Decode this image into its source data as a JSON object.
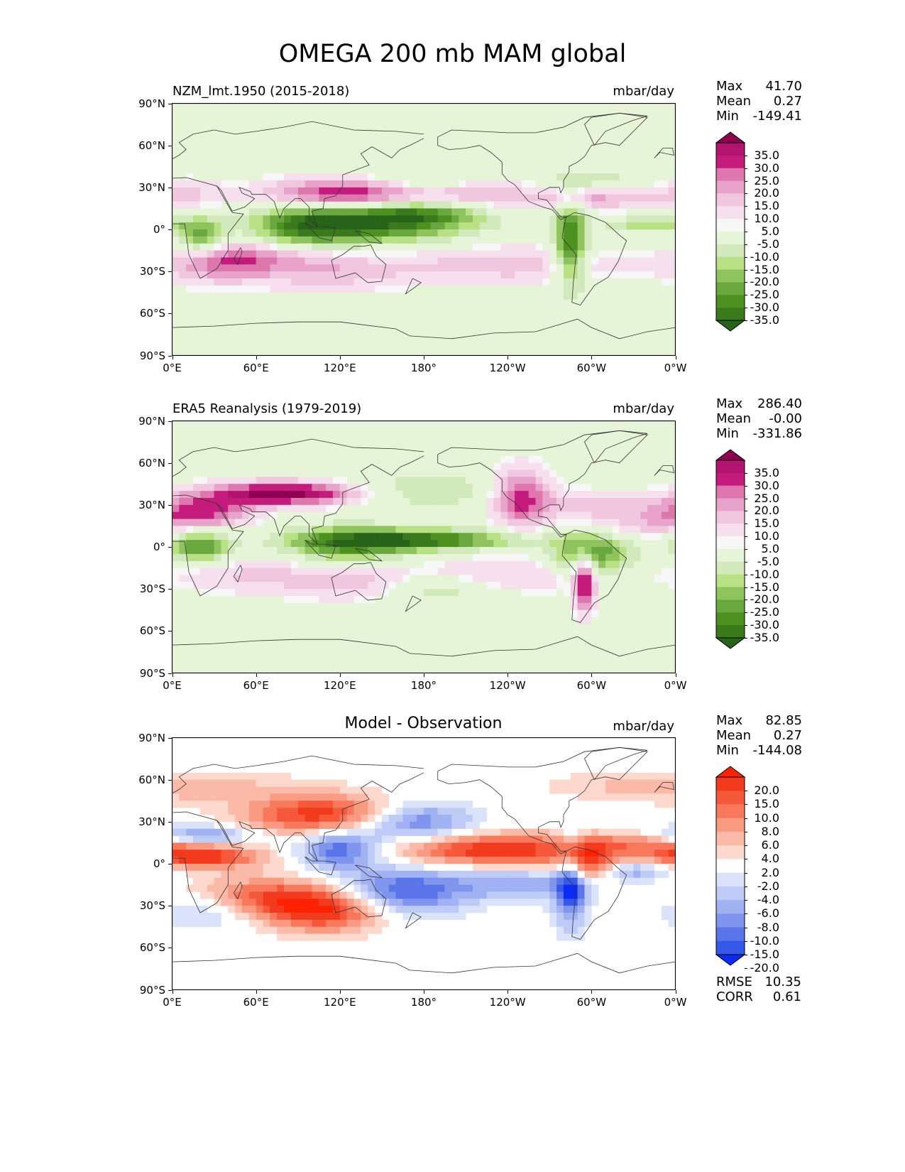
{
  "figure": {
    "title": "OMEGA 200 mb MAM global"
  },
  "panels": [
    {
      "key": "model",
      "left_title": "NZM_lmt.1950 (2015-2018)",
      "center_title": "",
      "units": "mbar/day",
      "stats": [
        {
          "name": "Max",
          "value": "41.70"
        },
        {
          "name": "Mean",
          "value": "0.27"
        },
        {
          "name": "Min",
          "value": "-149.41"
        }
      ],
      "colorbar": {
        "labels": [
          "35.0",
          "30.0",
          "25.0",
          "20.0",
          "15.0",
          "10.0",
          "5.0",
          "-5.0",
          "-10.0",
          "-15.0",
          "-20.0",
          "-25.0",
          "-30.0",
          "-35.0"
        ],
        "colors": [
          "#8e0152",
          "#b1136e",
          "#c51b7d",
          "#de77ae",
          "#e8a3cb",
          "#f1c7df",
          "#f7e0ee",
          "#f7f7f7",
          "#e6f4d7",
          "#d2eabb",
          "#b8e186",
          "#8fc35d",
          "#6aa83f",
          "#4d9221",
          "#3b7a1c",
          "#276419"
        ]
      }
    },
    {
      "key": "obs",
      "left_title": "ERA5 Reanalysis (1979-2019)",
      "center_title": "",
      "units": "mbar/day",
      "stats": [
        {
          "name": "Max",
          "value": "286.40"
        },
        {
          "name": "Mean",
          "value": "-0.00"
        },
        {
          "name": "Min",
          "value": "-331.86"
        }
      ],
      "colorbar": {
        "labels": [
          "35.0",
          "30.0",
          "25.0",
          "20.0",
          "15.0",
          "10.0",
          "5.0",
          "-5.0",
          "-10.0",
          "-15.0",
          "-20.0",
          "-25.0",
          "-30.0",
          "-35.0"
        ],
        "colors": [
          "#8e0152",
          "#b1136e",
          "#c51b7d",
          "#de77ae",
          "#e8a3cb",
          "#f1c7df",
          "#f7e0ee",
          "#f7f7f7",
          "#e6f4d7",
          "#d2eabb",
          "#b8e186",
          "#8fc35d",
          "#6aa83f",
          "#4d9221",
          "#3b7a1c",
          "#276419"
        ]
      }
    },
    {
      "key": "diff",
      "left_title": "",
      "center_title": "Model - Observation",
      "units": "mbar/day",
      "stats": [
        {
          "name": "Max",
          "value": "82.85"
        },
        {
          "name": "Mean",
          "value": "0.27"
        },
        {
          "name": "Min",
          "value": "-144.08"
        }
      ],
      "extra_stats": [
        {
          "name": "RMSE",
          "value": "10.35"
        },
        {
          "name": "CORR",
          "value": "0.61"
        }
      ],
      "colorbar": {
        "labels": [
          "20.0",
          "15.0",
          "10.0",
          "8.0",
          "6.0",
          "4.0",
          "2.0",
          "-2.0",
          "-4.0",
          "-6.0",
          "-8.0",
          "-10.0",
          "-15.0",
          "-20.0"
        ],
        "colors": [
          "#ff2200",
          "#f23a1e",
          "#f5583a",
          "#f7785b",
          "#f99a82",
          "#fbbaa8",
          "#fdd8cd",
          "#ffffff",
          "#dbe3fb",
          "#bfcbf7",
          "#a1b2f3",
          "#7f95ee",
          "#5a75ea",
          "#3558e8",
          "#0a2cf5"
        ]
      }
    }
  ],
  "chart_data": [
    {
      "type": "heatmap",
      "title": "NZM_lmt.1950 (2015-2018)",
      "units": "mbar/day",
      "x_ticks": [
        "0°E",
        "60°E",
        "120°E",
        "180°",
        "120°W",
        "60°W",
        "0°W"
      ],
      "y_ticks": [
        "90°N",
        "60°N",
        "30°N",
        "0°",
        "30°S",
        "60°S",
        "90°S"
      ],
      "xlim": [
        0,
        360
      ],
      "ylim": [
        -90,
        90
      ],
      "levels": [
        -35,
        -30,
        -25,
        -20,
        -15,
        -10,
        -5,
        5,
        10,
        15,
        20,
        25,
        30,
        35
      ],
      "stats": {
        "max": 41.7,
        "mean": 0.27,
        "min": -149.41
      }
    },
    {
      "type": "heatmap",
      "title": "ERA5 Reanalysis (1979-2019)",
      "units": "mbar/day",
      "x_ticks": [
        "0°E",
        "60°E",
        "120°E",
        "180°",
        "120°W",
        "60°W",
        "0°W"
      ],
      "y_ticks": [
        "90°N",
        "60°N",
        "30°N",
        "0°",
        "30°S",
        "60°S",
        "90°S"
      ],
      "xlim": [
        0,
        360
      ],
      "ylim": [
        -90,
        90
      ],
      "levels": [
        -35,
        -30,
        -25,
        -20,
        -15,
        -10,
        -5,
        5,
        10,
        15,
        20,
        25,
        30,
        35
      ],
      "stats": {
        "max": 286.4,
        "mean": -0.0,
        "min": -331.86
      }
    },
    {
      "type": "heatmap",
      "title": "Model - Observation",
      "units": "mbar/day",
      "x_ticks": [
        "0°E",
        "60°E",
        "120°E",
        "180°",
        "120°W",
        "60°W",
        "0°W"
      ],
      "y_ticks": [
        "90°N",
        "60°N",
        "30°N",
        "0°",
        "30°S",
        "60°S",
        "90°S"
      ],
      "xlim": [
        0,
        360
      ],
      "ylim": [
        -90,
        90
      ],
      "levels": [
        -20,
        -15,
        -10,
        -8,
        -6,
        -4,
        -2,
        2,
        4,
        6,
        8,
        10,
        15,
        20
      ],
      "stats": {
        "max": 82.85,
        "mean": 0.27,
        "min": -144.08,
        "rmse": 10.35,
        "corr": 0.61
      }
    }
  ]
}
